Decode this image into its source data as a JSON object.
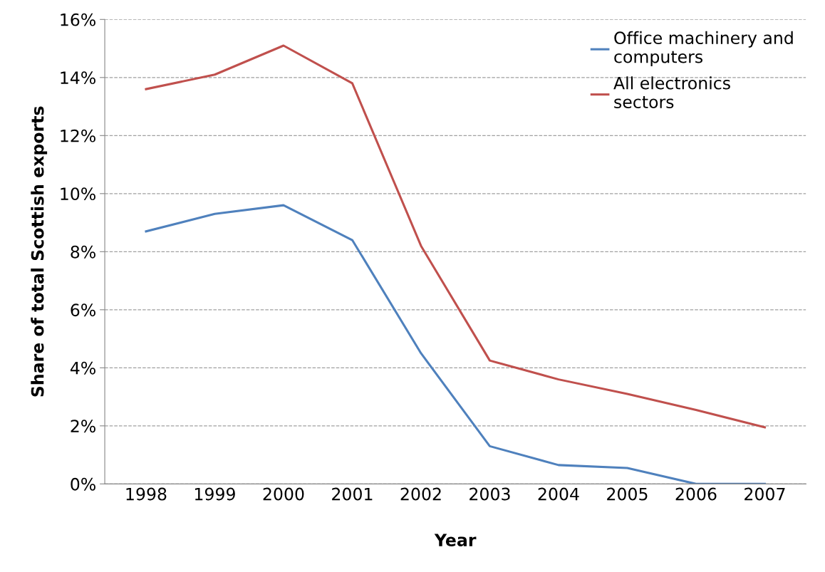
{
  "chart_data": {
    "type": "line",
    "xlabel": "Year",
    "ylabel": "Share of total Scottish exports",
    "categories": [
      "1998",
      "1999",
      "2000",
      "2001",
      "2002",
      "2003",
      "2004",
      "2005",
      "2006",
      "2007"
    ],
    "series": [
      {
        "name": "Office machinery and computers",
        "color": "#4f81bd",
        "values": [
          8.7,
          9.3,
          9.6,
          8.4,
          4.5,
          1.3,
          0.65,
          0.55,
          0,
          0
        ]
      },
      {
        "name": "All electronics sectors",
        "color": "#c0504d",
        "values": [
          13.6,
          14.1,
          15.1,
          13.8,
          8.2,
          4.25,
          3.6,
          3.1,
          2.55,
          1.95
        ]
      }
    ],
    "ylim": [
      0,
      16
    ],
    "yticks": [
      {
        "value": 0,
        "label": "0%"
      },
      {
        "value": 2,
        "label": "2%"
      },
      {
        "value": 4,
        "label": "4%"
      },
      {
        "value": 6,
        "label": "6%"
      },
      {
        "value": 8,
        "label": "8%"
      },
      {
        "value": 10,
        "label": "10%"
      },
      {
        "value": 12,
        "label": "12%"
      },
      {
        "value": 14,
        "label": "14%"
      },
      {
        "value": 16,
        "label": "16%"
      }
    ],
    "grid": "y",
    "legend": "top right",
    "marker": "none",
    "line_style": "solid"
  }
}
